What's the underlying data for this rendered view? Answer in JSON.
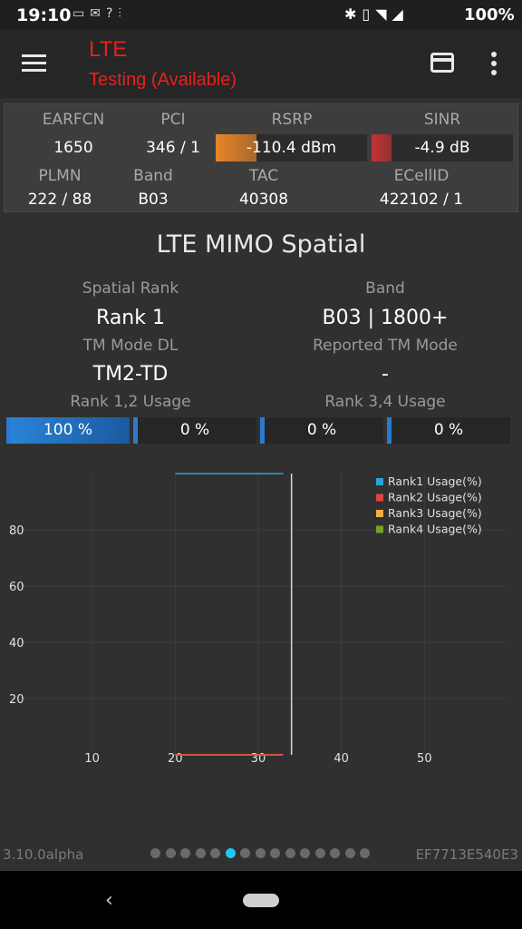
{
  "status_bar": {
    "time": "19:10",
    "left_icons": [
      "tim-icon",
      "mail-icon",
      "signal-unknown-icon"
    ],
    "right_icons": [
      "bluetooth-icon",
      "vibrate-icon",
      "wifi-icon",
      "cell-signal-icon"
    ],
    "battery": "100%"
  },
  "toolbar": {
    "title": "LTE",
    "subtitle": "Testing (Available)",
    "title_color": "#e52121"
  },
  "cell_info": {
    "earfcn": {
      "label": "EARFCN",
      "value": "1650"
    },
    "pci": {
      "label": "PCI",
      "value": "346 / 1"
    },
    "rsrp": {
      "label": "RSRP",
      "value": "-110.4 dBm",
      "level": 0.27,
      "color": "#e8852a"
    },
    "sinr": {
      "label": "SINR",
      "value": "-4.9 dB",
      "level": 0.14,
      "color": "#c43333"
    },
    "plmn": {
      "label": "PLMN",
      "value": "222 / 88"
    },
    "band": {
      "label": "Band",
      "value": "B03"
    },
    "tac": {
      "label": "TAC",
      "value": "40308"
    },
    "ecellid": {
      "label": "ECellID",
      "value": "422102 / 1"
    }
  },
  "mimo": {
    "title": "LTE MIMO Spatial",
    "spatial_rank_label": "Spatial Rank",
    "spatial_rank_value": "Rank 1",
    "band_label": "Band",
    "band_value": "B03 | 1800+",
    "tm_mode_label": "TM Mode DL",
    "tm_mode_value": "TM2-TD",
    "reported_tm_label": "Reported TM Mode",
    "reported_tm_value": "-",
    "rank12_label": "Rank 1,2 Usage",
    "rank34_label": "Rank 3,4 Usage",
    "usage": [
      {
        "text": "100 %",
        "level": 1.0
      },
      {
        "text": "0 %",
        "level": 0.0
      },
      {
        "text": "0 %",
        "level": 0.0
      },
      {
        "text": "0 %",
        "level": 0.0
      }
    ]
  },
  "chart_data": {
    "type": "line",
    "title": "",
    "xlabel": "",
    "ylabel": "",
    "xlim": [
      0,
      60
    ],
    "ylim": [
      0,
      100
    ],
    "x_ticks": [
      10,
      20,
      30,
      40,
      50
    ],
    "y_ticks": [
      20,
      40,
      60,
      80
    ],
    "grid": true,
    "legend_position": "top-right",
    "cursor_x": 34,
    "series": [
      {
        "name": "Rank1 Usage(%)",
        "color": "#2aa3d8",
        "x": [
          20,
          33
        ],
        "y": [
          100,
          100
        ]
      },
      {
        "name": "Rank2 Usage(%)",
        "color": "#e04444",
        "x": [
          20,
          33
        ],
        "y": [
          0,
          0
        ]
      },
      {
        "name": "Rank3 Usage(%)",
        "color": "#f0b040",
        "x": [
          20,
          33
        ],
        "y": [
          0,
          0
        ]
      },
      {
        "name": "Rank4 Usage(%)",
        "color": "#7aa02a",
        "x": [
          20,
          33
        ],
        "y": [
          0,
          0
        ]
      }
    ]
  },
  "footer": {
    "version": "3.10.0alpha",
    "device_id": "EF7713E540E3",
    "page_count": 15,
    "active_page": 5
  }
}
